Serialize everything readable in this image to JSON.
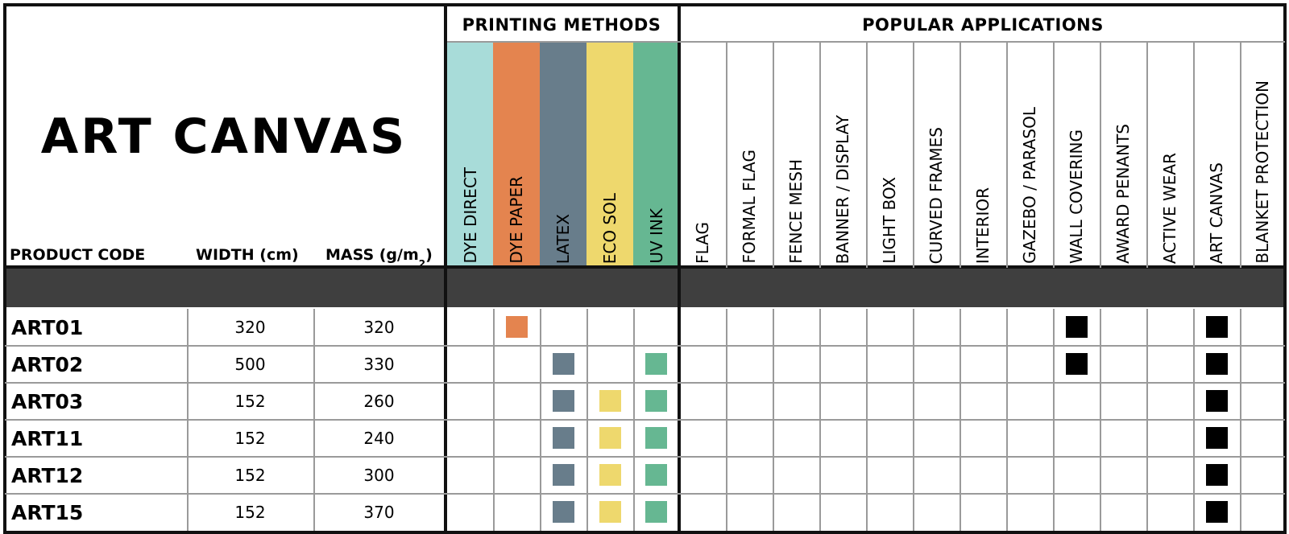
{
  "title": "ART CANVAS",
  "columns": {
    "product_code": "PRODUCT CODE",
    "width": "WIDTH (cm)",
    "mass": "MASS (g/m",
    "mass_sup": "2",
    "mass_close": ")"
  },
  "printing_methods": {
    "heading": "PRINTING METHODS",
    "items": [
      {
        "label": "DYE DIRECT",
        "color": "#a8dcd9"
      },
      {
        "label": "DYE PAPER",
        "color": "#e4844f"
      },
      {
        "label": "LATEX",
        "color": "#687d8b"
      },
      {
        "label": "ECO SOL",
        "color": "#eed86d"
      },
      {
        "label": "UV INK",
        "color": "#66b792"
      }
    ]
  },
  "popular_applications": {
    "heading": "POPULAR APPLICATIONS",
    "items": [
      "FLAG",
      "FORMAL FLAG",
      "FENCE MESH",
      "BANNER / DISPLAY",
      "LIGHT BOX",
      "CURVED FRAMES",
      "INTERIOR",
      "GAZEBO / PARASOL",
      "WALL COVERING",
      "AWARD PENANTS",
      "ACTIVE WEAR",
      "ART CANVAS",
      "BLANKET PROTECTION"
    ],
    "mark_color": "#000000"
  },
  "rows": [
    {
      "code": "ART01",
      "width": "320",
      "mass": "320",
      "methods": [
        false,
        true,
        false,
        false,
        false
      ],
      "apps": [
        false,
        false,
        false,
        false,
        false,
        false,
        false,
        false,
        true,
        false,
        false,
        true,
        false
      ]
    },
    {
      "code": "ART02",
      "width": "500",
      "mass": "330",
      "methods": [
        false,
        false,
        true,
        false,
        true
      ],
      "apps": [
        false,
        false,
        false,
        false,
        false,
        false,
        false,
        false,
        true,
        false,
        false,
        true,
        false
      ]
    },
    {
      "code": "ART03",
      "width": "152",
      "mass": "260",
      "methods": [
        false,
        false,
        true,
        true,
        true
      ],
      "apps": [
        false,
        false,
        false,
        false,
        false,
        false,
        false,
        false,
        false,
        false,
        false,
        true,
        false
      ]
    },
    {
      "code": "ART11",
      "width": "152",
      "mass": "240",
      "methods": [
        false,
        false,
        true,
        true,
        true
      ],
      "apps": [
        false,
        false,
        false,
        false,
        false,
        false,
        false,
        false,
        false,
        false,
        false,
        true,
        false
      ]
    },
    {
      "code": "ART12",
      "width": "152",
      "mass": "300",
      "methods": [
        false,
        false,
        true,
        true,
        true
      ],
      "apps": [
        false,
        false,
        false,
        false,
        false,
        false,
        false,
        false,
        false,
        false,
        false,
        true,
        false
      ]
    },
    {
      "code": "ART15",
      "width": "152",
      "mass": "370",
      "methods": [
        false,
        false,
        true,
        true,
        true
      ],
      "apps": [
        false,
        false,
        false,
        false,
        false,
        false,
        false,
        false,
        false,
        false,
        false,
        true,
        false
      ]
    }
  ],
  "band_color": "#3f3f3f"
}
